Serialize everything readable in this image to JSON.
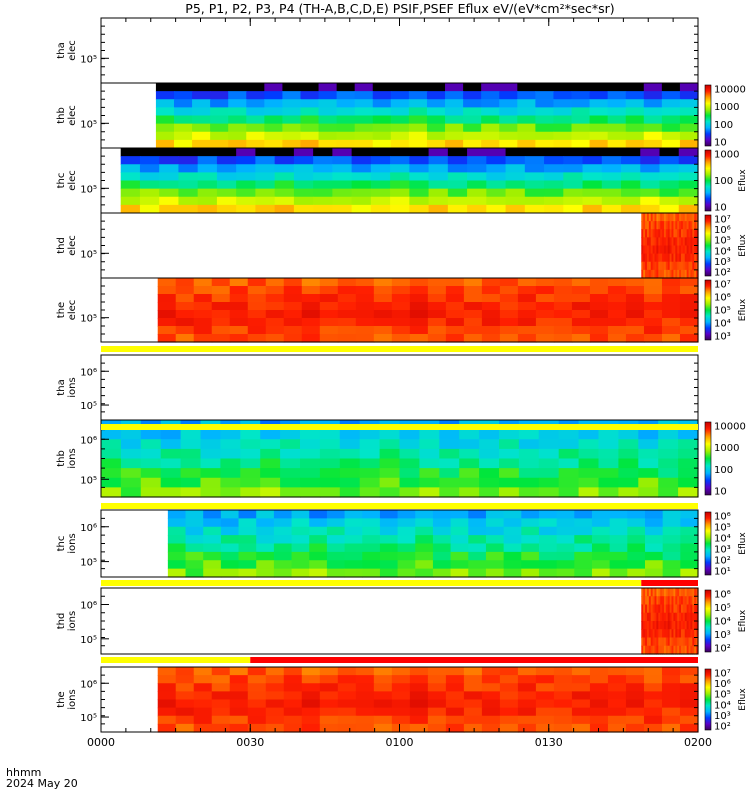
{
  "chart_data": {
    "type": "heatmap",
    "title": "P5, P1, P2, P3, P4 (TH-A,B,C,D,E) PSIF,PSEF Eflux eV/(eV*cm²*sec*sr)",
    "x_ticks": [
      "0000",
      "0030",
      "0100",
      "0130",
      "0200"
    ],
    "x_label": "hhmm",
    "x_date": "2024 May 20",
    "x_range": [
      "00:00",
      "02:00"
    ],
    "y_scale": "log",
    "colorbar_label": "Eflux",
    "panels": [
      {
        "id": "tha-elec",
        "ylabel": [
          "tha",
          "elec"
        ],
        "y_ticks": [
          "10⁵"
        ],
        "start": null,
        "end": null,
        "palette": "none",
        "colorbar": null
      },
      {
        "id": "thb-elec",
        "ylabel": [
          "thb",
          "elec"
        ],
        "y_ticks": [
          "10⁵"
        ],
        "start": 0.092,
        "end": 1,
        "palette": "elec_cool",
        "colorbar": {
          "ticks": [
            "10000",
            "1000",
            "100",
            "10"
          ],
          "label": ""
        }
      },
      {
        "id": "thc-elec",
        "ylabel": [
          "thc",
          "elec"
        ],
        "y_ticks": [
          "10⁵"
        ],
        "start": 0.033,
        "end": 1,
        "palette": "elec_cool",
        "colorbar": {
          "ticks": [
            "1000",
            "100",
            "10"
          ],
          "label": "Eflux"
        }
      },
      {
        "id": "thd-elec",
        "ylabel": [
          "thd",
          "elec"
        ],
        "y_ticks": [
          "10⁵"
        ],
        "start": 0.905,
        "end": 1,
        "palette": "hot",
        "colorbar": {
          "ticks": [
            "10⁷",
            "10⁶",
            "10⁵",
            "10⁴",
            "10³",
            "10²"
          ],
          "label": "Eflux"
        }
      },
      {
        "id": "the-elec",
        "ylabel": [
          "the",
          "elec"
        ],
        "y_ticks": [
          "10⁵"
        ],
        "start": 0.095,
        "end": 1,
        "palette": "hot",
        "colorbar": {
          "ticks": [
            "10⁷",
            "10⁶",
            "10⁵",
            "10⁴",
            "10³"
          ],
          "label": "Eflux"
        }
      },
      {
        "id": "tha-ions",
        "ylabel": [
          "tha",
          "ions"
        ],
        "y_ticks": [
          "10⁶",
          "10⁵"
        ],
        "start": null,
        "end": null,
        "palette": "none",
        "colorbar": null
      },
      {
        "id": "thb-ions",
        "ylabel": [
          "thb",
          "ions"
        ],
        "y_ticks": [
          "10⁶",
          "10⁵"
        ],
        "start": 0,
        "end": 1,
        "palette": "ion_blue",
        "colorbar": {
          "ticks": [
            "10000",
            "1000",
            "100",
            "10"
          ],
          "label": ""
        }
      },
      {
        "id": "thc-ions",
        "ylabel": [
          "thc",
          "ions"
        ],
        "y_ticks": [
          "10⁶",
          "10⁵"
        ],
        "start": 0.112,
        "end": 1,
        "palette": "ion_blue",
        "colorbar": {
          "ticks": [
            "10⁶",
            "10⁵",
            "10⁴",
            "10³",
            "10²",
            "10¹"
          ],
          "label": "Eflux"
        }
      },
      {
        "id": "thd-ions",
        "ylabel": [
          "thd",
          "ions"
        ],
        "y_ticks": [
          "10⁶",
          "10⁵"
        ],
        "start": 0.905,
        "end": 1,
        "palette": "hot",
        "colorbar": {
          "ticks": [
            "10⁶",
            "10⁵",
            "10⁴",
            "10³",
            "10²"
          ],
          "label": "Eflux"
        }
      },
      {
        "id": "the-ions",
        "ylabel": [
          "the",
          "ions"
        ],
        "y_ticks": [
          "10⁶",
          "10⁵"
        ],
        "start": 0.095,
        "end": 1,
        "palette": "hot",
        "colorbar": {
          "ticks": [
            "10⁷",
            "10⁶",
            "10⁵",
            "10⁴",
            "10³",
            "10²"
          ],
          "label": "Eflux"
        }
      }
    ],
    "mode_bars": [
      {
        "after_panel": "the-elec",
        "segments": [
          {
            "from": 0,
            "to": 1,
            "color": "#ffff00"
          }
        ]
      },
      {
        "after_panel": "tha-ions",
        "segments": [
          {
            "from": 0,
            "to": 1,
            "color": "#ffff00"
          }
        ]
      },
      {
        "after_panel": "thb-ions",
        "segments": [
          {
            "from": 0,
            "to": 1,
            "color": "#ffff00"
          }
        ]
      },
      {
        "after_panel": "thc-ions",
        "segments": [
          {
            "from": 0,
            "to": 0.905,
            "color": "#ffff00"
          },
          {
            "from": 0.905,
            "to": 1,
            "color": "#ff0000"
          }
        ]
      },
      {
        "after_panel": "thd-ions",
        "segments": [
          {
            "from": 0,
            "to": 0.25,
            "color": "#ffff00"
          },
          {
            "from": 0.25,
            "to": 1,
            "color": "#ff0000"
          }
        ]
      }
    ],
    "grid": false
  }
}
